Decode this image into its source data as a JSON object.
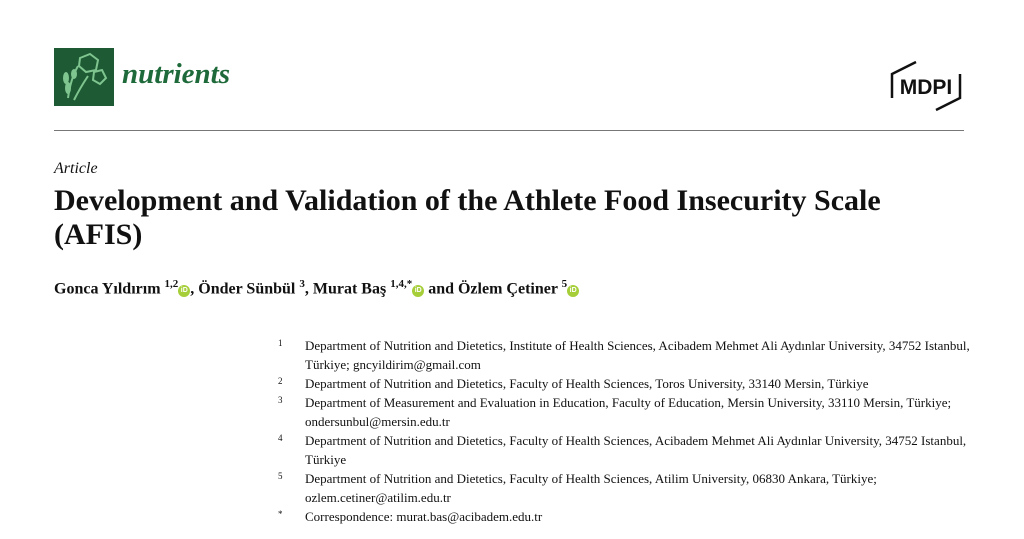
{
  "header": {
    "journal": "nutrients",
    "publisher": "MDPI",
    "brand_color": "#1e5a34"
  },
  "article_type": "Article",
  "title": "Development and Validation of the Athlete Food Insecurity Scale (AFIS)",
  "authors": [
    {
      "name": "Gonca Yıldırım",
      "sup": "1,2",
      "orcid": true
    },
    {
      "name": "Önder Sünbül",
      "sup": "3",
      "orcid": false
    },
    {
      "name": "Murat Baş",
      "sup": "1,4,*",
      "orcid": true
    },
    {
      "name": "Özlem Çetiner",
      "sup": "5",
      "orcid": true
    }
  ],
  "sep": ", ",
  "and": " and ",
  "orcid_label": "iD",
  "affiliations": [
    {
      "num": "1",
      "text": "Department of Nutrition and Dietetics, Institute of Health Sciences, Acibadem Mehmet Ali Aydınlar University, 34752 Istanbul, Türkiye; gncyildirim@gmail.com"
    },
    {
      "num": "2",
      "text": "Department of Nutrition and Dietetics, Faculty of Health Sciences, Toros University, 33140 Mersin, Türkiye"
    },
    {
      "num": "3",
      "text": "Department of Measurement and Evaluation in Education, Faculty of Education, Mersin University, 33110 Mersin, Türkiye; ondersunbul@mersin.edu.tr"
    },
    {
      "num": "4",
      "text": "Department of Nutrition and Dietetics, Faculty of Health Sciences, Acibadem Mehmet Ali Aydınlar University, 34752 Istanbul, Türkiye"
    },
    {
      "num": "5",
      "text": "Department of Nutrition and Dietetics, Faculty of Health Sciences, Atilim University, 06830 Ankara, Türkiye; ozlem.cetiner@atilim.edu.tr"
    },
    {
      "num": "*",
      "text": "Correspondence: murat.bas@acibadem.edu.tr"
    }
  ]
}
